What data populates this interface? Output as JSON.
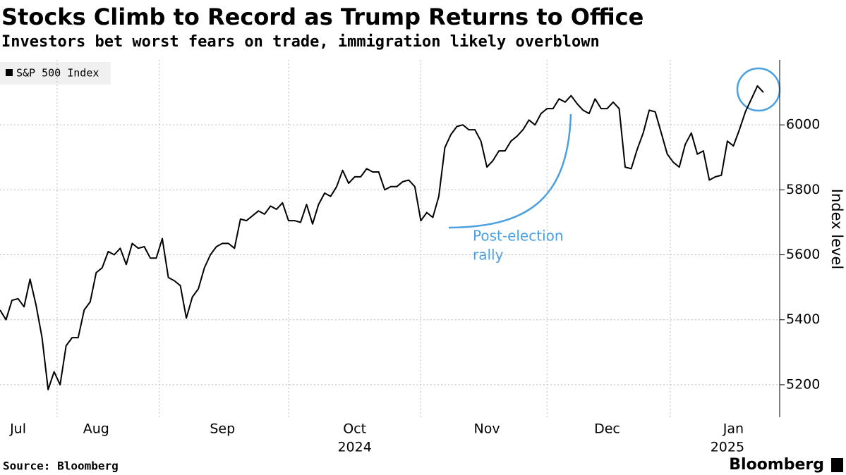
{
  "chart_data": {
    "type": "line",
    "title": "Stocks Climb to Record as Trump Returns to Office",
    "subtitle": "Investors bet worst fears on trade, immigration likely overblown",
    "y_axis_label": "Index level",
    "source": "Source: Bloomberg",
    "brand": "Bloomberg",
    "annotation": [
      "Post-election",
      "rally"
    ],
    "categories": [
      null,
      null,
      null,
      "Jul",
      null,
      null,
      null,
      null,
      null,
      null,
      null,
      null,
      null,
      null,
      null,
      null,
      "Aug",
      null,
      null,
      null,
      null,
      null,
      null,
      null,
      null,
      null,
      null,
      null,
      null,
      null,
      null,
      null,
      null,
      null,
      null,
      null,
      null,
      "Sep",
      null,
      null,
      null,
      null,
      null,
      null,
      null,
      null,
      null,
      null,
      null,
      null,
      null,
      null,
      null,
      null,
      null,
      null,
      null,
      null,
      null,
      "Oct",
      null,
      null,
      null,
      null,
      null,
      null,
      null,
      null,
      null,
      null,
      null,
      null,
      null,
      null,
      null,
      null,
      null,
      null,
      null,
      null,
      null,
      "Nov",
      null,
      null,
      null,
      null,
      null,
      null,
      null,
      null,
      null,
      null,
      null,
      null,
      null,
      null,
      null,
      null,
      null,
      null,
      null,
      "Dec",
      null,
      null,
      null,
      null,
      null,
      null,
      null,
      null,
      null,
      null,
      null,
      null,
      null,
      null,
      null,
      null,
      null,
      null,
      null,
      null,
      "Jan",
      null,
      null,
      null,
      null,
      null
    ],
    "category_years": [
      null,
      null,
      null,
      null,
      null,
      null,
      null,
      null,
      null,
      null,
      null,
      null,
      null,
      null,
      null,
      null,
      null,
      null,
      null,
      null,
      null,
      null,
      null,
      null,
      null,
      null,
      null,
      null,
      null,
      null,
      null,
      null,
      null,
      null,
      null,
      null,
      null,
      null,
      null,
      null,
      null,
      null,
      null,
      null,
      null,
      null,
      null,
      null,
      null,
      null,
      null,
      null,
      null,
      null,
      null,
      null,
      null,
      null,
      null,
      "2024",
      null,
      null,
      null,
      null,
      null,
      null,
      null,
      null,
      null,
      null,
      null,
      null,
      null,
      null,
      null,
      null,
      null,
      null,
      null,
      null,
      null,
      null,
      null,
      null,
      null,
      null,
      null,
      null,
      null,
      null,
      null,
      null,
      null,
      null,
      null,
      null,
      null,
      null,
      null,
      null,
      null,
      null,
      null,
      null,
      null,
      null,
      null,
      null,
      null,
      null,
      null,
      null,
      null,
      null,
      null,
      null,
      null,
      null,
      null,
      null,
      null,
      "2025",
      null,
      null,
      null,
      null,
      null
    ],
    "series": [
      {
        "name": "S&P 500 Index",
        "color": "#000000",
        "values": [
          5430,
          5400,
          5460,
          5465,
          5440,
          5525,
          5445,
          5345,
          5185,
          5240,
          5200,
          5320,
          5345,
          5345,
          5430,
          5455,
          5545,
          5560,
          5610,
          5600,
          5620,
          5570,
          5635,
          5620,
          5625,
          5590,
          5590,
          5650,
          5530,
          5520,
          5505,
          5405,
          5470,
          5495,
          5560,
          5600,
          5625,
          5635,
          5635,
          5620,
          5710,
          5705,
          5720,
          5735,
          5725,
          5750,
          5740,
          5760,
          5705,
          5705,
          5700,
          5755,
          5695,
          5755,
          5790,
          5780,
          5810,
          5860,
          5820,
          5840,
          5840,
          5865,
          5855,
          5855,
          5800,
          5810,
          5810,
          5825,
          5830,
          5810,
          5705,
          5730,
          5715,
          5780,
          5930,
          5970,
          5995,
          6000,
          5985,
          5985,
          5950,
          5870,
          5890,
          5920,
          5920,
          5950,
          5965,
          5985,
          6015,
          6000,
          6035,
          6050,
          6050,
          6080,
          6070,
          6090,
          6065,
          6045,
          6035,
          6080,
          6050,
          6050,
          6070,
          6050,
          5870,
          5865,
          5925,
          5975,
          6045,
          6040,
          5975,
          5910,
          5885,
          5870,
          5940,
          5975,
          5910,
          5920,
          5830,
          5840,
          5845,
          5950,
          5935,
          5985,
          6040,
          6080,
          6120,
          6100
        ]
      }
    ],
    "ylim": [
      5100,
      6200
    ],
    "yticks": [
      5200,
      5400,
      5600,
      5800,
      6000
    ],
    "grid": true
  }
}
